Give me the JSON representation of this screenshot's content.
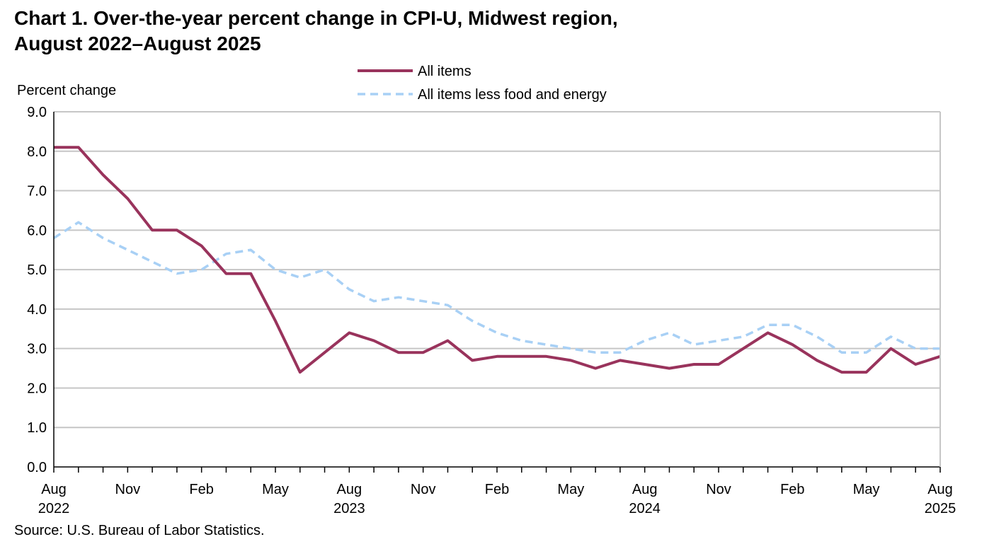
{
  "chart_data": {
    "type": "line",
    "title_line1": "Chart 1. Over-the-year percent change in CPI-U, Midwest region,",
    "title_line2": "August 2022–August 2025",
    "ylabel": "Percent change",
    "ylim": [
      0,
      9
    ],
    "yticks": [
      "0.0",
      "1.0",
      "2.0",
      "3.0",
      "4.0",
      "5.0",
      "6.0",
      "7.0",
      "8.0",
      "9.0"
    ],
    "grid": true,
    "legend_position": "top-center",
    "x_months": [
      "2022-08",
      "2022-09",
      "2022-10",
      "2022-11",
      "2022-12",
      "2023-01",
      "2023-02",
      "2023-03",
      "2023-04",
      "2023-05",
      "2023-06",
      "2023-07",
      "2023-08",
      "2023-09",
      "2023-10",
      "2023-11",
      "2023-12",
      "2024-01",
      "2024-02",
      "2024-03",
      "2024-04",
      "2024-05",
      "2024-06",
      "2024-07",
      "2024-08",
      "2024-09",
      "2024-10",
      "2024-11",
      "2024-12",
      "2025-01",
      "2025-02",
      "2025-03",
      "2025-04",
      "2025-05",
      "2025-06",
      "2025-07",
      "2025-08"
    ],
    "x_tick_labels": [
      {
        "month": "2022-08",
        "line1": "Aug",
        "line2": "2022"
      },
      {
        "month": "2022-11",
        "line1": "Nov",
        "line2": ""
      },
      {
        "month": "2023-02",
        "line1": "Feb",
        "line2": ""
      },
      {
        "month": "2023-05",
        "line1": "May",
        "line2": ""
      },
      {
        "month": "2023-08",
        "line1": "Aug",
        "line2": "2023"
      },
      {
        "month": "2023-11",
        "line1": "Nov",
        "line2": ""
      },
      {
        "month": "2024-02",
        "line1": "Feb",
        "line2": ""
      },
      {
        "month": "2024-05",
        "line1": "May",
        "line2": ""
      },
      {
        "month": "2024-08",
        "line1": "Aug",
        "line2": "2024"
      },
      {
        "month": "2024-11",
        "line1": "Nov",
        "line2": ""
      },
      {
        "month": "2025-02",
        "line1": "Feb",
        "line2": ""
      },
      {
        "month": "2025-05",
        "line1": "May",
        "line2": ""
      },
      {
        "month": "2025-08",
        "line1": "Aug",
        "line2": "2025"
      }
    ],
    "series": [
      {
        "name": "All items",
        "color": "#99335c",
        "style": "solid",
        "values": [
          8.1,
          8.1,
          7.4,
          6.8,
          6.0,
          6.0,
          5.6,
          4.9,
          4.9,
          3.7,
          2.4,
          2.9,
          3.4,
          3.2,
          2.9,
          2.9,
          3.2,
          2.7,
          2.8,
          2.8,
          2.8,
          2.7,
          2.5,
          2.7,
          2.6,
          2.5,
          2.6,
          2.6,
          3.0,
          3.4,
          3.1,
          2.7,
          2.4,
          2.4,
          3.0,
          2.6,
          2.8
        ]
      },
      {
        "name": "All items less food and energy",
        "color": "#a8d0f5",
        "style": "dashed",
        "values": [
          5.8,
          6.2,
          5.8,
          5.5,
          5.2,
          4.9,
          5.0,
          5.4,
          5.5,
          5.0,
          4.8,
          5.0,
          4.5,
          4.2,
          4.3,
          4.2,
          4.1,
          3.7,
          3.4,
          3.2,
          3.1,
          3.0,
          2.9,
          2.9,
          3.2,
          3.4,
          3.1,
          3.2,
          3.3,
          3.6,
          3.6,
          3.3,
          2.9,
          2.9,
          3.3,
          3.0,
          3.0
        ]
      }
    ]
  },
  "source": "Source: U.S. Bureau of Labor Statistics."
}
